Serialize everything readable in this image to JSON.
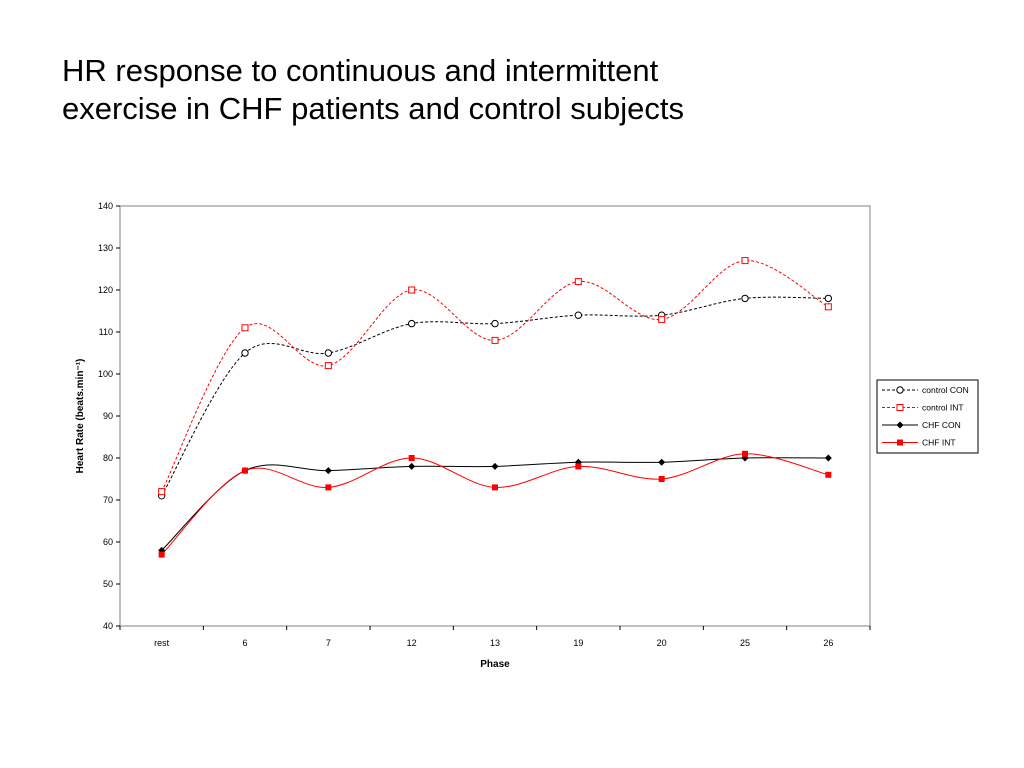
{
  "slide": {
    "title_line1": "HR response to continuous and intermittent",
    "title_line2": "exercise in CHF patients and control subjects"
  },
  "chart_data": {
    "type": "line",
    "title": "",
    "xlabel": "Phase",
    "ylabel": "Heart Rate (beats.min⁻¹)",
    "categories": [
      "rest",
      "6",
      "7",
      "12",
      "13",
      "19",
      "20",
      "25",
      "26"
    ],
    "ylim": [
      40,
      140
    ],
    "yticks": [
      40,
      50,
      60,
      70,
      80,
      90,
      100,
      110,
      120,
      130,
      140
    ],
    "grid": false,
    "legend_position": "right",
    "series": [
      {
        "name": "control CON",
        "values": [
          71,
          105,
          105,
          112,
          112,
          114,
          114,
          118,
          118
        ],
        "color": "#000000",
        "dashed": true,
        "marker": "open-circle"
      },
      {
        "name": "control INT",
        "values": [
          72,
          111,
          102,
          120,
          108,
          122,
          113,
          127,
          116
        ],
        "color": "#ff0000",
        "dashed": true,
        "marker": "open-square"
      },
      {
        "name": "CHF CON",
        "values": [
          58,
          77,
          77,
          78,
          78,
          79,
          79,
          80,
          80
        ],
        "color": "#000000",
        "dashed": false,
        "marker": "filled-diamond"
      },
      {
        "name": "CHF INT",
        "values": [
          57,
          77,
          73,
          80,
          73,
          78,
          75,
          81,
          76
        ],
        "color": "#ff0000",
        "dashed": false,
        "marker": "filled-square"
      }
    ]
  }
}
